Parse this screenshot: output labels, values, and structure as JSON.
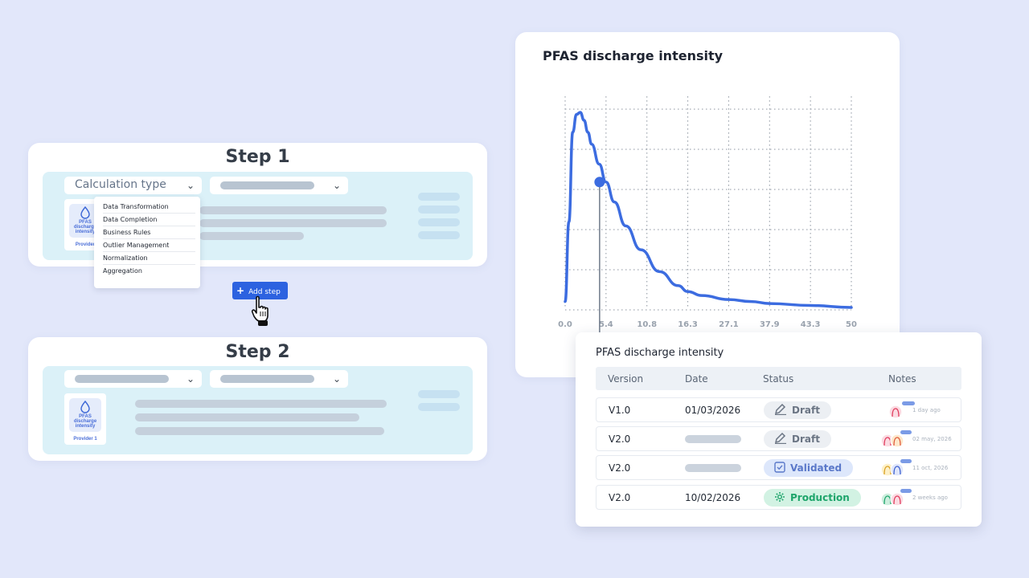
{
  "step1": {
    "title": "Step 1",
    "calc_select_label": "Calculation type",
    "dropdown_items": [
      "Data Transformation",
      "Data Completion",
      "Business Rules",
      "Outlier Management",
      "Normalization",
      "Aggregation"
    ],
    "provider": {
      "name": "PFAS discharge intensity",
      "label": "Provider"
    }
  },
  "add_step_label": "Add step",
  "step2": {
    "title": "Step 2",
    "provider": {
      "name": "PFAS discharge intensity",
      "label": "Provider 1"
    }
  },
  "chart": {
    "title": "PFAS discharge intensity",
    "x_ticks": [
      "0.0",
      "5.4",
      "10.8",
      "16.3",
      "27.1",
      "37.9",
      "43.3",
      "50"
    ]
  },
  "chart_data": {
    "type": "line",
    "title": "PFAS discharge intensity",
    "xlabel": "",
    "ylabel": "",
    "x_tick_labels": [
      "0.0",
      "5.4",
      "10.8",
      "16.3",
      "27.1",
      "37.9",
      "43.3",
      "50"
    ],
    "grid": true,
    "series": [
      {
        "x": [
          0.0,
          0.5,
          1.0,
          1.5,
          2.0,
          2.5,
          3.0,
          3.5,
          4.5,
          5.4,
          6.5,
          8.0,
          10.0,
          12.5,
          15.0,
          16.3,
          20.0,
          27.1,
          33.0,
          37.9,
          43.3,
          50.0
        ],
        "y": [
          0.05,
          0.45,
          0.9,
          0.99,
          1.0,
          0.96,
          0.9,
          0.84,
          0.74,
          0.65,
          0.55,
          0.43,
          0.31,
          0.2,
          0.13,
          0.1,
          0.08,
          0.06,
          0.05,
          0.04,
          0.03,
          0.02
        ]
      }
    ],
    "highlight_point": {
      "x": 5.4,
      "y": 0.65
    }
  },
  "table": {
    "title": "PFAS discharge intensity",
    "headers": [
      "Version",
      "Date",
      "Status",
      "Notes"
    ],
    "rows": [
      {
        "version": "V1.0",
        "date": "01/03/2026",
        "status": "Draft",
        "ago": "1 day ago"
      },
      {
        "version": "V2.0",
        "date": "",
        "status": "Draft",
        "ago": "02 may, 2026"
      },
      {
        "version": "V2.0",
        "date": "",
        "status": "Validated",
        "ago": "11 oct, 2026"
      },
      {
        "version": "V2.0",
        "date": "10/02/2026",
        "status": "Production",
        "ago": "2 weeks ago"
      }
    ]
  },
  "colors": {
    "accent": "#2c62e0",
    "line": "#3c6ce0",
    "draft": "#6b7584",
    "validated": "#5a78c9",
    "production": "#1ea56b"
  }
}
